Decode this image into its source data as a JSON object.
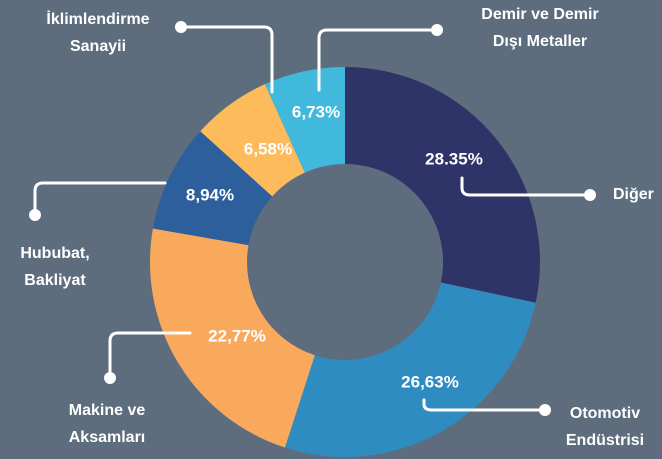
{
  "chart_data": {
    "type": "donut",
    "categories": [
      "Diğer",
      "Otomotiv\nEndüstrisi",
      "Makine ve\nAksamları",
      "Hububat,\nBakliyat",
      "İklimlendirme\nSanayii",
      "Demir ve Demir\nDışı Metaller"
    ],
    "values": [
      28.35,
      26.63,
      22.77,
      8.94,
      6.58,
      6.73
    ],
    "value_labels": [
      "28.35%",
      "26,63%",
      "22,77%",
      "8,94%",
      "6,58%",
      "6,73%"
    ],
    "colors": [
      "#2f3468",
      "#2f8cc1",
      "#f9a95b",
      "#2c5f9b",
      "#fdbb5b",
      "#40b9dd"
    ]
  }
}
